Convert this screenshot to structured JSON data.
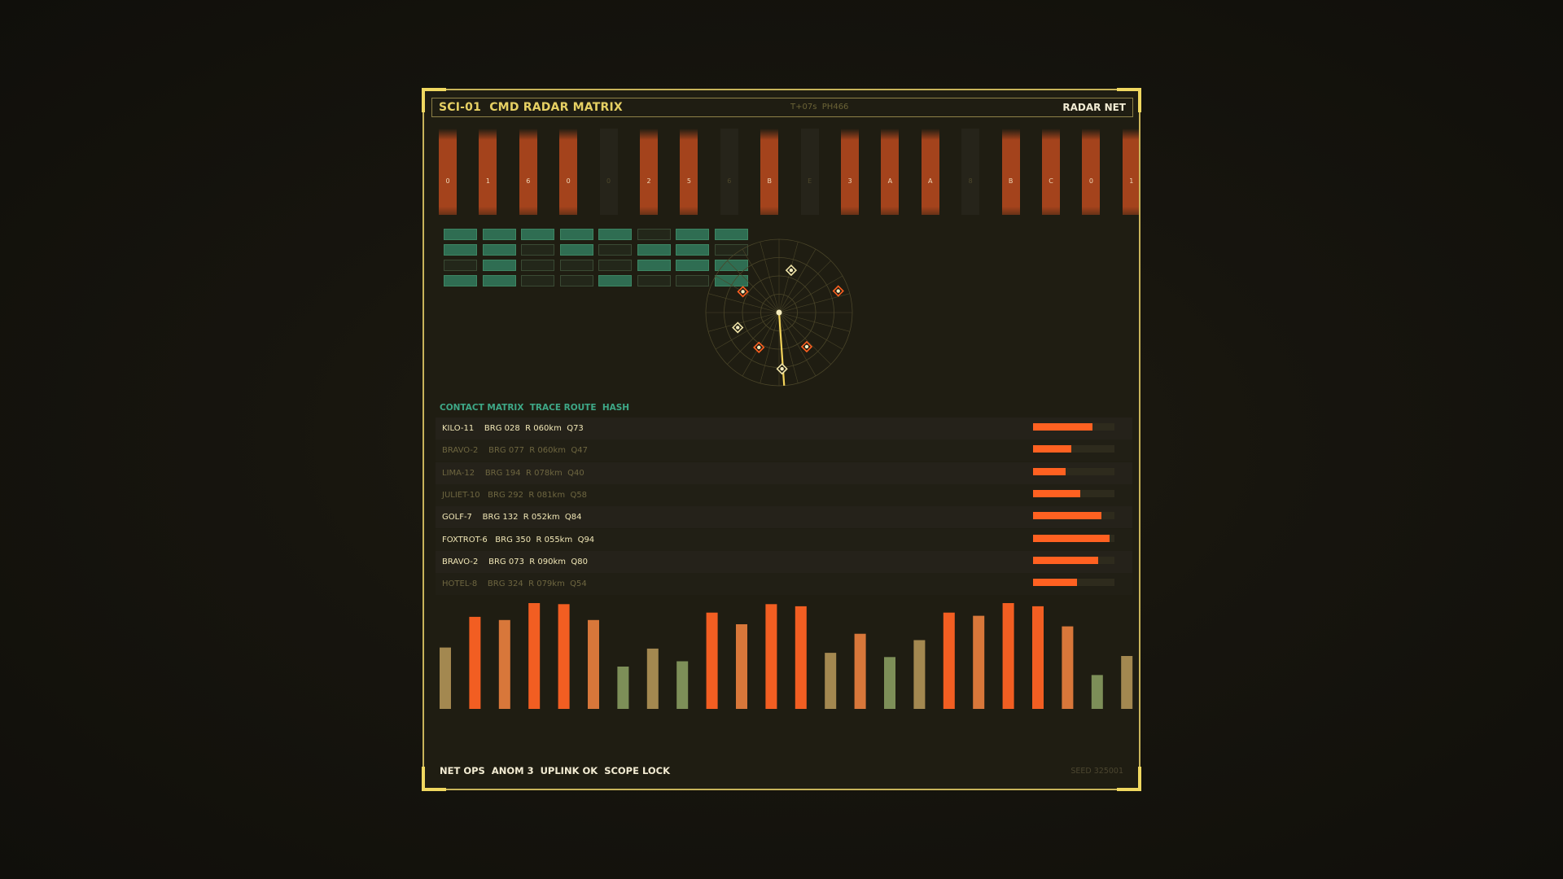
{
  "header": {
    "title": "SCI-01  CMD RADAR MATRIX",
    "telemetry": "T+07s  PH466",
    "net_label": "RADAR NET"
  },
  "columns": [
    {
      "char": "0",
      "on": true
    },
    {
      "char": "1",
      "on": true
    },
    {
      "char": "6",
      "on": true
    },
    {
      "char": "0",
      "on": true
    },
    {
      "char": "0",
      "on": false
    },
    {
      "char": "2",
      "on": true
    },
    {
      "char": "5",
      "on": true
    },
    {
      "char": "6",
      "on": false
    },
    {
      "char": "B",
      "on": true
    },
    {
      "char": "E",
      "on": false
    },
    {
      "char": "3",
      "on": true
    },
    {
      "char": "A",
      "on": true
    },
    {
      "char": "A",
      "on": true
    },
    {
      "char": "8",
      "on": false
    },
    {
      "char": "B",
      "on": true
    },
    {
      "char": "C",
      "on": true
    },
    {
      "char": "0",
      "on": true
    },
    {
      "char": "1",
      "on": true
    }
  ],
  "matrix": [
    [
      1,
      1,
      1,
      1,
      1,
      0,
      1,
      1
    ],
    [
      1,
      1,
      0,
      1,
      0,
      1,
      1,
      0
    ],
    [
      0,
      1,
      0,
      0,
      0,
      1,
      1,
      1
    ],
    [
      1,
      1,
      0,
      0,
      1,
      0,
      0,
      1
    ]
  ],
  "radar": {
    "sweep_bearing_deg": 176,
    "contacts": [
      {
        "bearing": 16,
        "range": 0.6,
        "kind": "friendly"
      },
      {
        "bearing": 300,
        "range": 0.57,
        "kind": "hostile"
      },
      {
        "bearing": 70,
        "range": 0.86,
        "kind": "hostile"
      },
      {
        "bearing": 250,
        "range": 0.6,
        "kind": "friendly"
      },
      {
        "bearing": 210,
        "range": 0.55,
        "kind": "hostile"
      },
      {
        "bearing": 141,
        "range": 0.6,
        "kind": "hostile"
      },
      {
        "bearing": 177,
        "range": 0.77,
        "kind": "friendly"
      }
    ],
    "colors": {
      "grid": "#4a4529",
      "sweep": "#f3d35a",
      "hostile": "#ff6121",
      "friendly": "#f0e4a8"
    }
  },
  "contacts": {
    "title": "CONTACT MATRIX  TRACE ROUTE  HASH",
    "rows": [
      {
        "label": "KILO-11    BRG 028  R 060km  Q73",
        "q": 73,
        "bright": true
      },
      {
        "label": "BRAVO-2    BRG 077  R 060km  Q47",
        "q": 47,
        "bright": false
      },
      {
        "label": "LIMA-12    BRG 194  R 078km  Q40",
        "q": 40,
        "bright": false
      },
      {
        "label": "JULIET-10   BRG 292  R 081km  Q58",
        "q": 58,
        "bright": false
      },
      {
        "label": "GOLF-7    BRG 132  R 052km  Q84",
        "q": 84,
        "bright": true
      },
      {
        "label": "FOXTROT-6   BRG 350  R 055km  Q94",
        "q": 94,
        "bright": true
      },
      {
        "label": "BRAVO-2    BRG 073  R 090km  Q80",
        "q": 80,
        "bright": true
      },
      {
        "label": "HOTEL-8    BRG 324  R 079km  Q54",
        "q": 54,
        "bright": false
      }
    ]
  },
  "spectrum": {
    "values": [
      58,
      87,
      84,
      100,
      99,
      84,
      40,
      57,
      45,
      91,
      80,
      99,
      97,
      53,
      71,
      49,
      65,
      91,
      88,
      100,
      97,
      78,
      32,
      50
    ],
    "kinds": [
      "tan",
      "orange",
      "ramp",
      "orange",
      "orange",
      "ramp",
      "green",
      "tan",
      "green",
      "orange",
      "ramp",
      "orange",
      "orange",
      "tan",
      "ramp",
      "green",
      "tan",
      "orange",
      "ramp",
      "orange",
      "orange",
      "ramp",
      "green",
      "tan"
    ],
    "colors": {
      "orange": "#f25e22",
      "ramp": "#d8773a",
      "tan": "#a38850",
      "green": "#7d8f58"
    }
  },
  "footer": {
    "status": "NET OPS  ANOM 3  UPLINK OK  SCOPE LOCK",
    "seed": "SEED 325001"
  }
}
